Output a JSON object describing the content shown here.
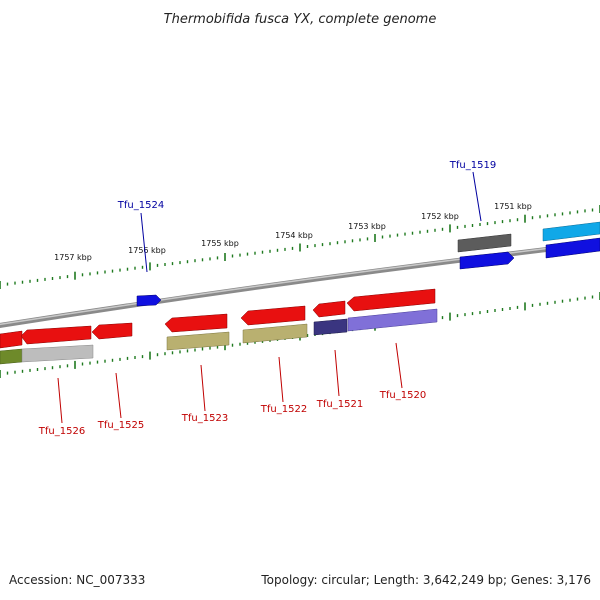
{
  "title": "Thermobifida fusca YX, complete genome",
  "accession_text": "Accession: NC_007333",
  "topology_text": "Topology: circular; Length: 3,642,249 bp; Genes: 3,176",
  "tick_labels": [
    "1757 kbp",
    "1756 kbp",
    "1755 kbp",
    "1754 kbp",
    "1753 kbp",
    "1752 kbp",
    "1751 kbp"
  ],
  "gene_labels_top": [
    "Tfu_1524",
    "Tfu_1519"
  ],
  "gene_labels_bottom": [
    "Tfu_1526",
    "Tfu_1525",
    "Tfu_1523",
    "Tfu_1522",
    "Tfu_1521",
    "Tfu_1520"
  ],
  "colors": {
    "backbone": "#8a8a8a",
    "tick": "#1f7a1f",
    "gene_red": "#e81010",
    "gene_blue": "#1010e0",
    "label_top": "#0000a0",
    "label_bottom": "#c00000",
    "khaki": "#b9b070",
    "lavender": "#8070d8",
    "navy": "#3a3580",
    "grey": "#bdbdbd",
    "olive": "#6e8a2a",
    "dark_grey": "#5c5c5c",
    "cyan": "#10a8e8"
  }
}
